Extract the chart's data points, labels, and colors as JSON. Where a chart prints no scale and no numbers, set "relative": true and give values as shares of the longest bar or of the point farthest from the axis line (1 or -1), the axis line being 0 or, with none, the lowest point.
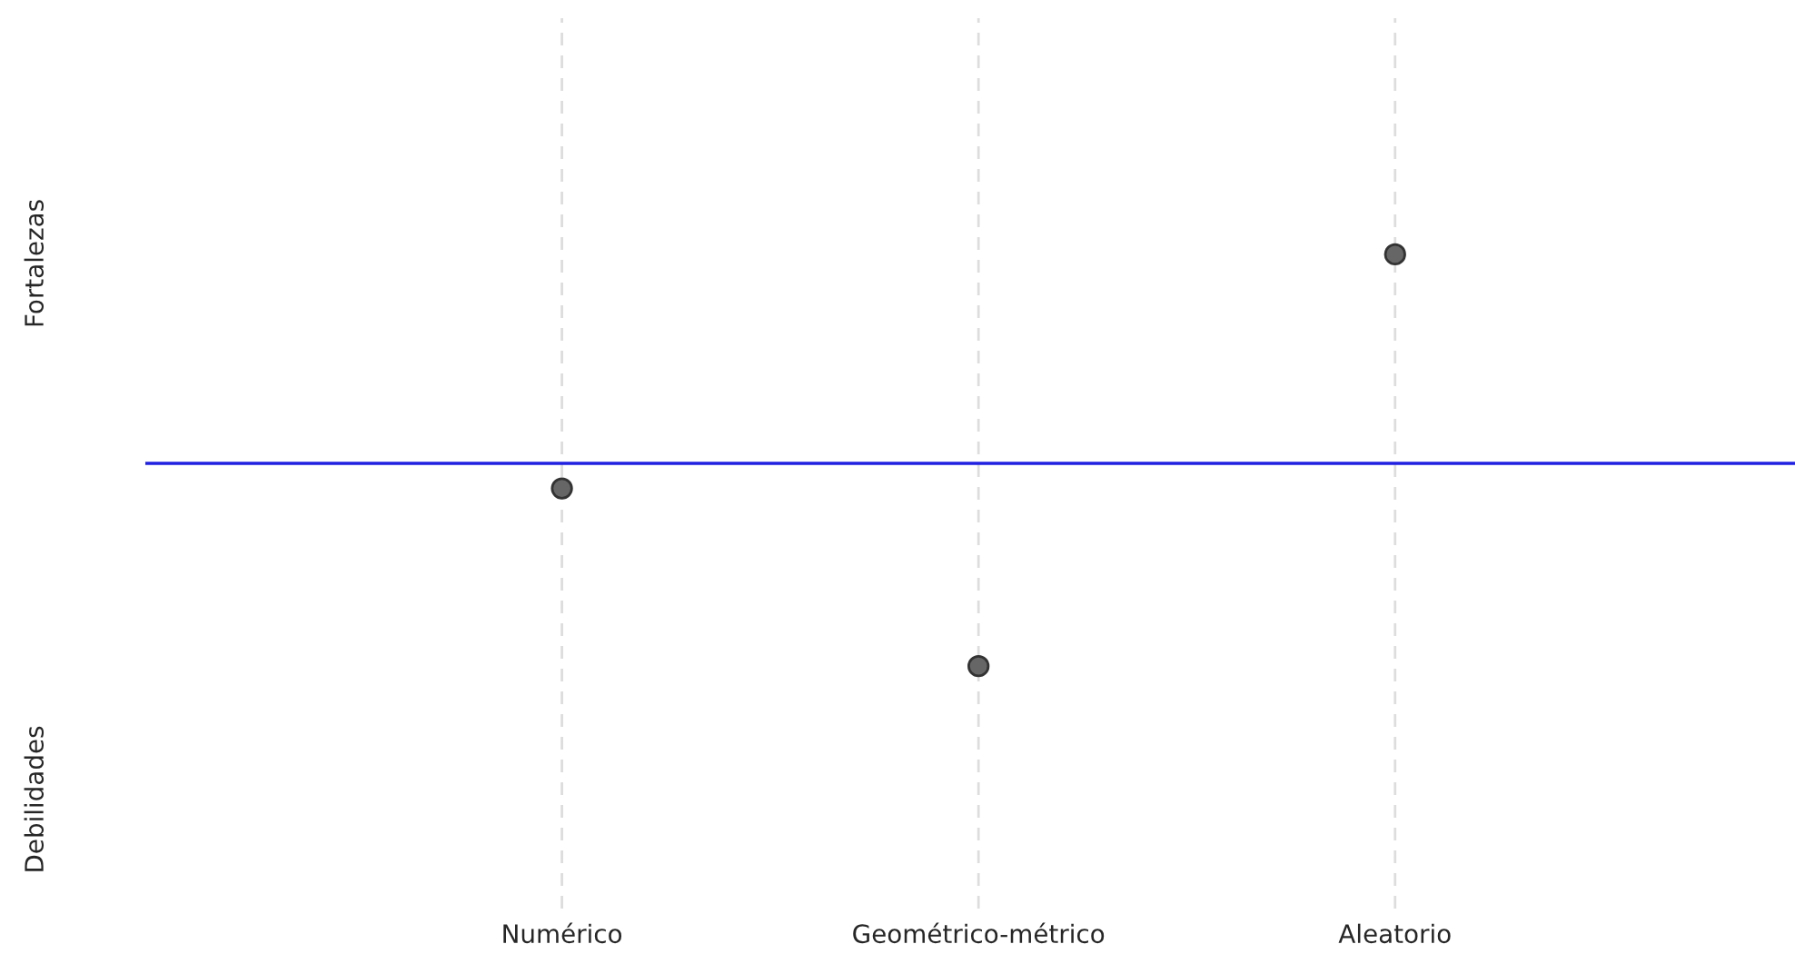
{
  "chart_data": {
    "type": "scatter",
    "relative": true,
    "categories": [
      "Numérico",
      "Geométrico-métrico",
      "Aleatorio"
    ],
    "series": [
      {
        "color": "#666666",
        "values": [
          -0.12,
          -0.97,
          1.0
        ]
      }
    ],
    "ref_lines": [
      {
        "axis": "y",
        "value": 0,
        "color": "#2020e0",
        "line_style": "solid"
      }
    ],
    "annotations": [
      "Fortalezas",
      "Debilidades"
    ],
    "grid": "x",
    "marker": "circle"
  }
}
